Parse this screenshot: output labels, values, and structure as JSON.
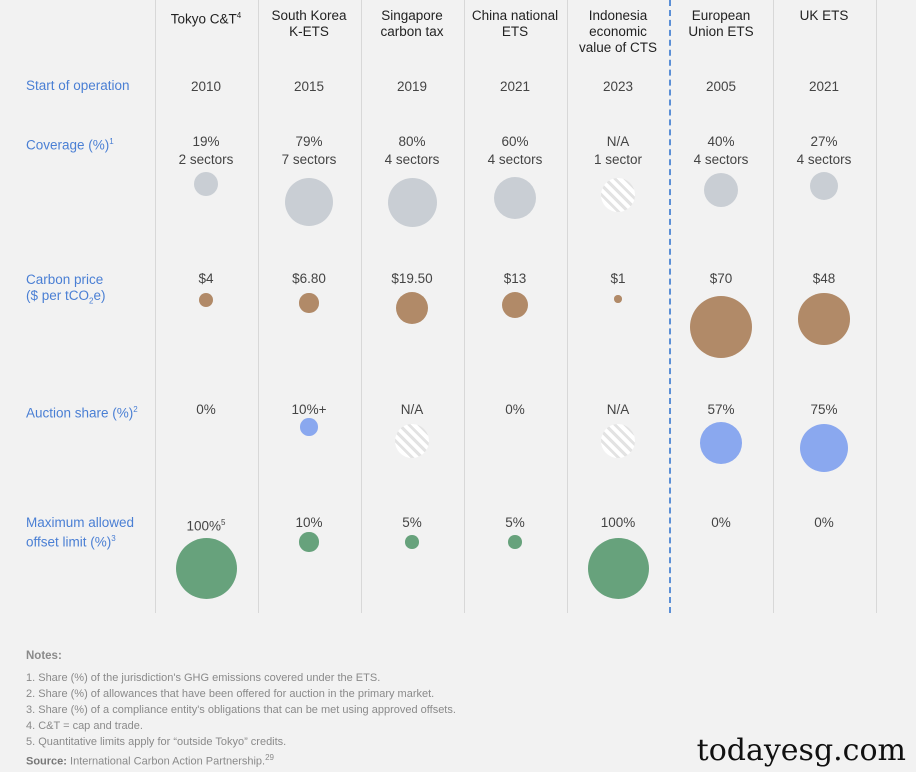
{
  "columns": [
    {
      "label": "Tokyo C&T",
      "sup": "4"
    },
    {
      "label": "South Korea\nK-ETS",
      "sup": ""
    },
    {
      "label": "Singapore\ncarbon tax",
      "sup": ""
    },
    {
      "label": "China national\nETS",
      "sup": ""
    },
    {
      "label": "Indonesia\neconomic\nvalue of CTS",
      "sup": ""
    },
    {
      "label": "European\nUnion ETS",
      "sup": ""
    },
    {
      "label": "UK ETS",
      "sup": ""
    }
  ],
  "rows": {
    "start": {
      "label": "Start of operation",
      "values": [
        "2010",
        "2015",
        "2019",
        "2021",
        "2023",
        "2005",
        "2021"
      ]
    },
    "coverage": {
      "label": "Coverage (%)",
      "sup": "1",
      "pct": [
        "19%",
        "79%",
        "80%",
        "60%",
        "N/A",
        "40%",
        "27%"
      ],
      "sectors": [
        "2 sectors",
        "7 sectors",
        "4 sectors",
        "4 sectors",
        "1 sector",
        "4 sectors",
        "4 sectors"
      ],
      "values": [
        19,
        79,
        80,
        60,
        null,
        40,
        27
      ]
    },
    "price": {
      "label_line1": "Carbon price",
      "label_line2a": "($ per tCO",
      "label_sub": "2",
      "label_line2b": "e)",
      "labels": [
        "$4",
        "$6.80",
        "$19.50",
        "$13",
        "$1",
        "$70",
        "$48"
      ],
      "values": [
        4,
        6.8,
        19.5,
        13,
        1,
        70,
        48
      ]
    },
    "auction": {
      "label": "Auction share (%)",
      "sup": "2",
      "labels": [
        "0%",
        "10%+",
        "N/A",
        "0%",
        "N/A",
        "57%",
        "75%"
      ],
      "values": [
        0,
        10,
        null,
        0,
        null,
        57,
        75
      ]
    },
    "offset": {
      "label": "Maximum allowed\noffset limit (%)",
      "sup": "3",
      "labels": [
        "100%",
        "10%",
        "5%",
        "5%",
        "100%",
        "0%",
        "0%"
      ],
      "label_sups": [
        "5",
        "",
        "",
        "",
        "",
        "",
        ""
      ],
      "values": [
        100,
        10,
        5,
        5,
        100,
        0,
        0
      ]
    }
  },
  "colors": {
    "coverage": "#c9ced4",
    "price": "#b18a68",
    "auction": "#8aa8ef",
    "offset": "#67a27c",
    "label": "#4a7fd4"
  },
  "notes": {
    "title": "Notes:",
    "items": [
      "1. Share (%) of the jurisdiction's GHG emissions covered under the ETS.",
      "2. Share (%) of allowances that have been offered for auction in the primary market.",
      "3. Share (%) of a compliance entity's obligations that can be met using approved offsets.",
      "4. C&T = cap and trade.",
      "5. Quantitative limits apply for “outside Tokyo” credits."
    ],
    "source_label": "Source:",
    "source_text": "International Carbon Action Partnership.",
    "source_sup": "29"
  },
  "watermark": "todayesg.com"
}
